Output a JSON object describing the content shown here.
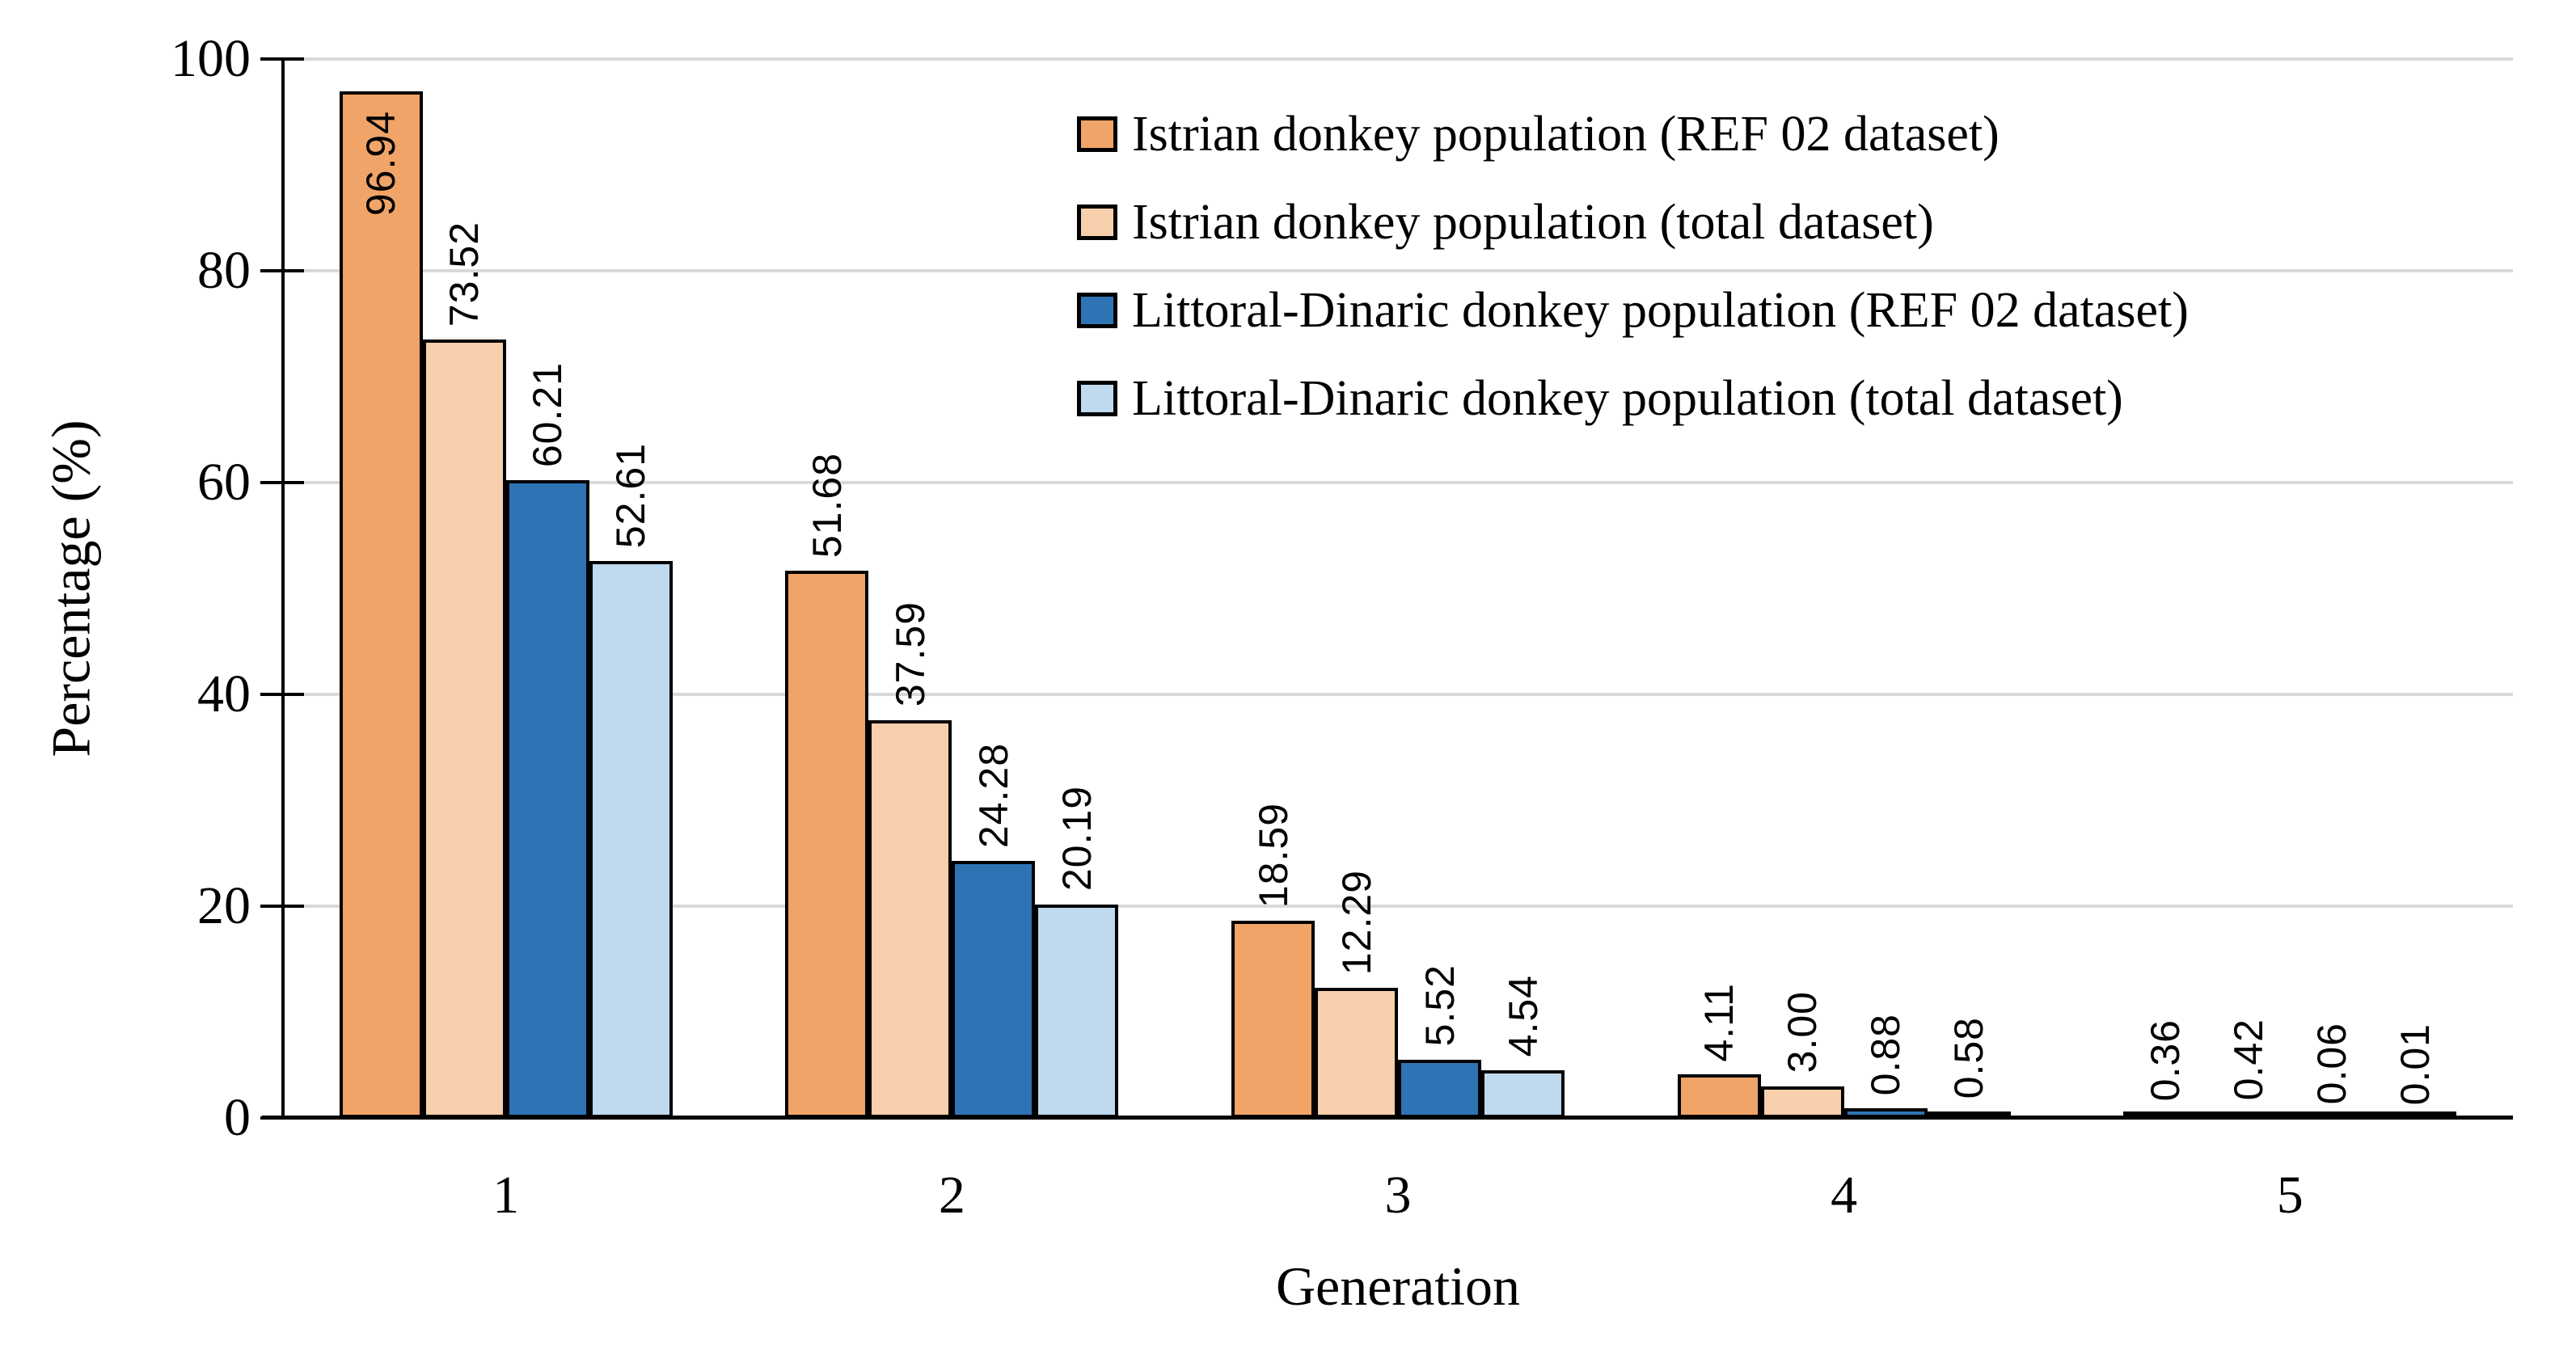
{
  "chart_data": {
    "type": "bar",
    "title": "",
    "xlabel": "Generation",
    "ylabel": "Percentage (%)",
    "categories": [
      "1",
      "2",
      "3",
      "4",
      "5"
    ],
    "y_ticks": [
      0,
      20,
      40,
      60,
      80,
      100
    ],
    "ylim": [
      0,
      100
    ],
    "grid": "horizontal",
    "gridline_color": "#D9D9D9",
    "bar_outline_color": "#000000",
    "axis_color": "#000000",
    "legend_position": "upper-right-inside",
    "series": [
      {
        "name": "Istrian donkey population (REF 02 dataset)",
        "color": "#F0A468",
        "values": [
          96.94,
          51.68,
          18.59,
          4.11,
          0.36
        ]
      },
      {
        "name": "Istrian donkey population (total dataset)",
        "color": "#F7CFAC",
        "values": [
          73.52,
          37.59,
          12.29,
          3.0,
          0.42
        ]
      },
      {
        "name": "Littoral-Dinaric donkey population (REF 02 dataset)",
        "color": "#2E74B5",
        "values": [
          60.21,
          24.28,
          5.52,
          0.88,
          0.06
        ]
      },
      {
        "name": "Littoral-Dinaric donkey population (total dataset)",
        "color": "#BFD9EE",
        "values": [
          52.61,
          20.19,
          4.54,
          0.58,
          0.01
        ]
      }
    ],
    "data_labels": [
      [
        "96.94",
        "51.68",
        "18.59",
        "4.11",
        "0.36"
      ],
      [
        "73.52",
        "37.59",
        "12.29",
        "3.00",
        "0.42"
      ],
      [
        "60.21",
        "24.28",
        "5.52",
        "0.88",
        "0.06"
      ],
      [
        "52.61",
        "20.19",
        "4.54",
        "0.58",
        "0.01"
      ]
    ]
  }
}
